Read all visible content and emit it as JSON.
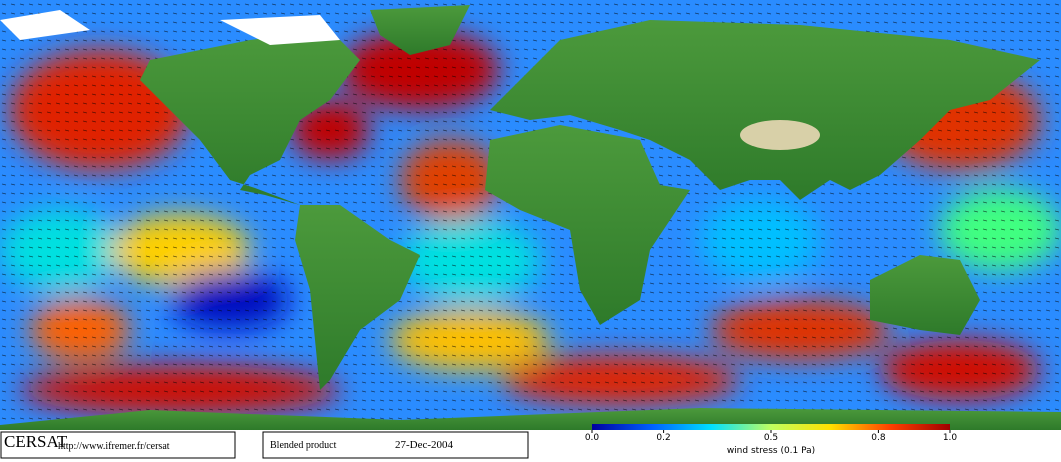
{
  "footer": {
    "logo": "CERSAT",
    "url": "http://www.ifremer.fr/cersat",
    "product": "Blended product",
    "date": "27-Dec-2004"
  },
  "colorbar": {
    "label": "wind stress (0.1 Pa)",
    "lim": [
      0,
      1
    ],
    "ticks": [
      {
        "value": 0,
        "label": "0.0"
      },
      0.2,
      0.5,
      0.8,
      {
        "value": 1,
        "label": "1.0"
      }
    ],
    "colors": [
      "#0000a0",
      "#0060ff",
      "#00e0ff",
      "#c0ff60",
      "#ffe000",
      "#ff4000",
      "#a00000"
    ]
  }
}
